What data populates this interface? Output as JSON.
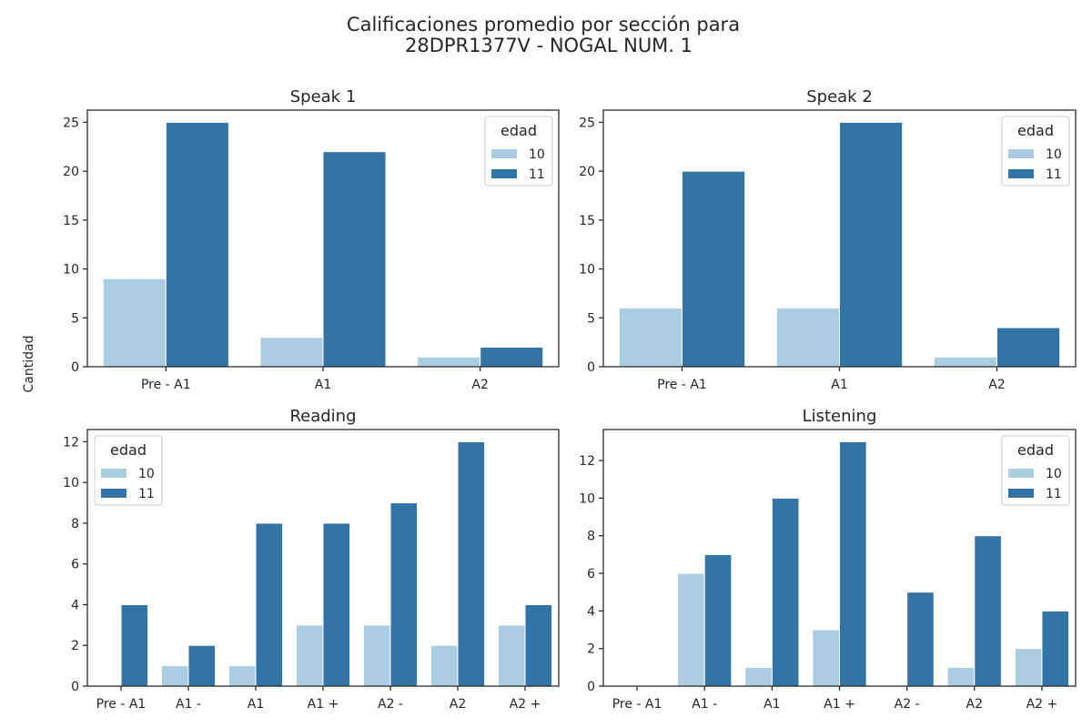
{
  "figure": {
    "title_line1": "Calificaciones promedio por sección para",
    "title_line2": "28DPR1377V - NOGAL NUM. 1",
    "ylabel": "Cantidad"
  },
  "colors": {
    "10": "#abcde2",
    "11": "#3274a6",
    "axis": "#262626"
  },
  "chart_data": [
    {
      "type": "bar",
      "title": "Speak 1",
      "categories": [
        "Pre - A1",
        "A1",
        "A2"
      ],
      "series": [
        {
          "name": "10",
          "values": [
            9,
            3,
            1
          ]
        },
        {
          "name": "11",
          "values": [
            25,
            22,
            2
          ]
        }
      ],
      "ylim": [
        0,
        26.25
      ],
      "yticks": [
        0,
        5,
        10,
        15,
        20,
        25
      ],
      "legend": {
        "title": "edad",
        "placement": "top-right"
      }
    },
    {
      "type": "bar",
      "title": "Speak 2",
      "categories": [
        "Pre - A1",
        "A1",
        "A2"
      ],
      "series": [
        {
          "name": "10",
          "values": [
            6,
            6,
            1
          ]
        },
        {
          "name": "11",
          "values": [
            20,
            25,
            4
          ]
        }
      ],
      "ylim": [
        0,
        26.25
      ],
      "yticks": [
        0,
        5,
        10,
        15,
        20,
        25
      ],
      "legend": {
        "title": "edad",
        "placement": "top-right"
      }
    },
    {
      "type": "bar",
      "title": "Reading",
      "categories": [
        "Pre - A1",
        "A1 -",
        "A1",
        "A1 +",
        "A2 -",
        "A2",
        "A2 +"
      ],
      "series": [
        {
          "name": "10",
          "values": [
            0,
            1,
            1,
            3,
            3,
            2,
            3
          ]
        },
        {
          "name": "11",
          "values": [
            4,
            2,
            8,
            8,
            9,
            12,
            4
          ]
        }
      ],
      "ylim": [
        0,
        12.6
      ],
      "yticks": [
        0,
        2,
        4,
        6,
        8,
        10,
        12
      ],
      "legend": {
        "title": "edad",
        "placement": "top-left"
      }
    },
    {
      "type": "bar",
      "title": "Listening",
      "categories": [
        "Pre - A1",
        "A1 -",
        "A1",
        "A1 +",
        "A2 -",
        "A2",
        "A2 +"
      ],
      "series": [
        {
          "name": "10",
          "values": [
            0,
            6,
            1,
            3,
            0,
            1,
            2
          ]
        },
        {
          "name": "11",
          "values": [
            0,
            7,
            10,
            13,
            5,
            8,
            4
          ]
        }
      ],
      "ylim": [
        0,
        13.65
      ],
      "yticks": [
        0,
        2,
        4,
        6,
        8,
        10,
        12
      ],
      "legend": {
        "title": "edad",
        "placement": "top-right"
      }
    }
  ]
}
